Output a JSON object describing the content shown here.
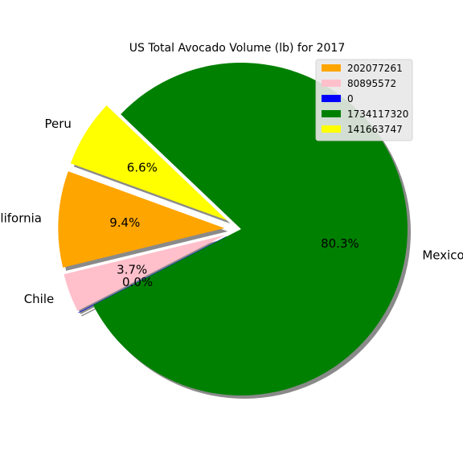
{
  "chart_data": {
    "type": "pie",
    "title": "US Total Avocado Volume (lb) for 2017",
    "start_angle_deg": 160,
    "shadow": true,
    "slices": [
      {
        "label": "California",
        "value": 202077261,
        "pct_label": "9.4%",
        "color": "#ffa500",
        "explode": 0.1
      },
      {
        "label": "Chile",
        "value": 80895572,
        "pct_label": "3.7%",
        "color": "#ffc0cb",
        "explode": 0.1
      },
      {
        "label": "",
        "value": 0,
        "pct_label": "0.0%",
        "color": "#0000ff",
        "explode": 0.1
      },
      {
        "label": "Mexico",
        "value": 1734117320,
        "pct_label": "80.3%",
        "color": "#008000",
        "explode": 0
      },
      {
        "label": "Peru",
        "value": 141663747,
        "pct_label": "6.6%",
        "color": "#ffff00",
        "explode": 0.1
      }
    ],
    "legend": {
      "placement": "upper-right",
      "entries": [
        "202077261",
        "80895572",
        "0",
        "1734117320",
        "141663747"
      ]
    }
  }
}
